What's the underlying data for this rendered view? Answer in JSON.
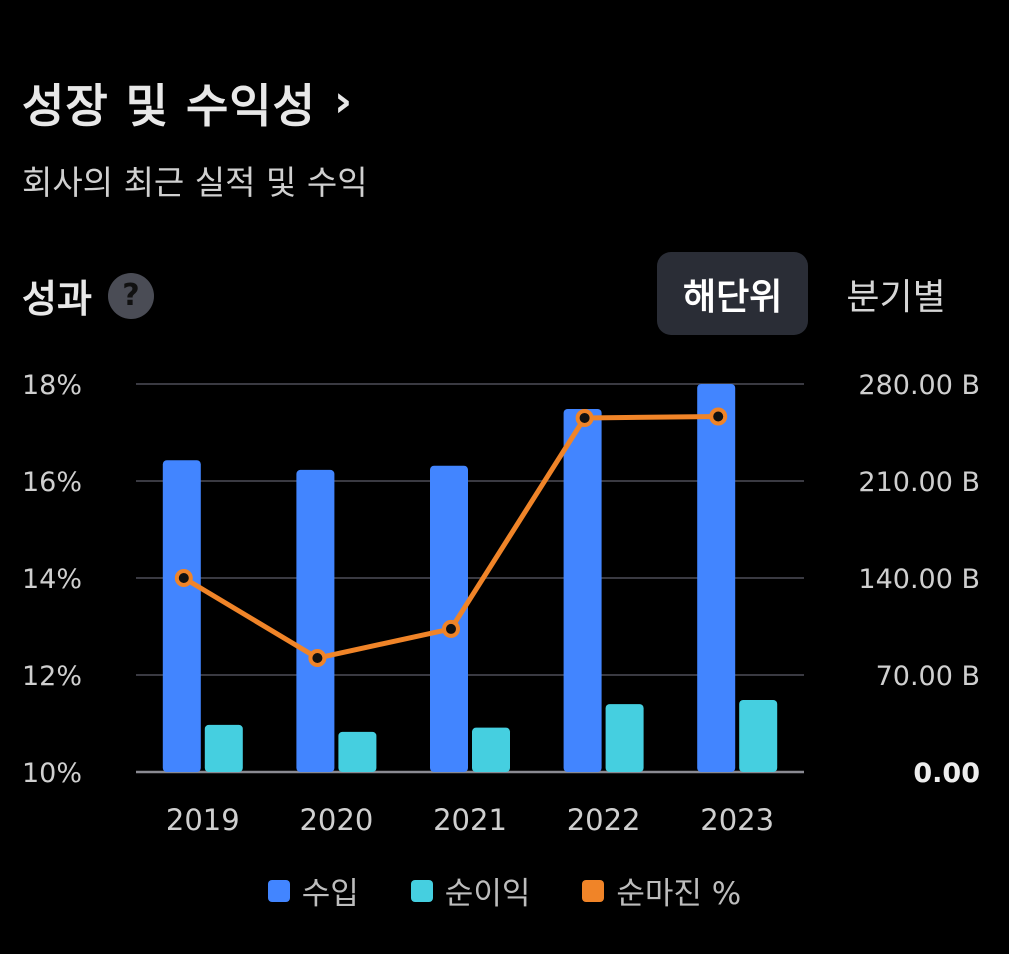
{
  "header": {
    "title": "성장 및 수익성",
    "chevron": "›",
    "subtitle": "회사의 최근 실적 및 수익"
  },
  "section": {
    "title": "성과",
    "help_icon": "question-circle-icon",
    "help_glyph": "?"
  },
  "period_toggle": {
    "annual_label": "해단위",
    "quarterly_label": "분기별",
    "selected": "해단위"
  },
  "colors": {
    "revenue": "#4285ff",
    "net_income": "#45cfe0",
    "net_margin": "#f08428",
    "grid": "#3a3a42",
    "background": "#000000"
  },
  "chart_data": {
    "type": "bar",
    "categories": [
      "2019",
      "2020",
      "2021",
      "2022",
      "2023"
    ],
    "y_left": {
      "ticks": [
        "18%",
        "16%",
        "14%",
        "12%",
        "10%"
      ],
      "range": [
        10,
        18
      ]
    },
    "y_right": {
      "ticks": [
        "280.00 B",
        "210.00 B",
        "140.00 B",
        "70.00 B",
        "0.00"
      ],
      "range": [
        0,
        280
      ]
    },
    "series": [
      {
        "name": "수입",
        "type": "bar",
        "axis": "right",
        "values": [
          225,
          218,
          221,
          262,
          280
        ]
      },
      {
        "name": "순이익",
        "type": "bar",
        "axis": "right",
        "values": [
          34,
          29,
          32,
          49,
          52
        ]
      },
      {
        "name": "순마진 %",
        "type": "line",
        "axis": "left",
        "values": [
          14.0,
          12.35,
          12.95,
          17.3,
          17.33
        ]
      }
    ],
    "grid": true,
    "legend_position": "bottom"
  }
}
